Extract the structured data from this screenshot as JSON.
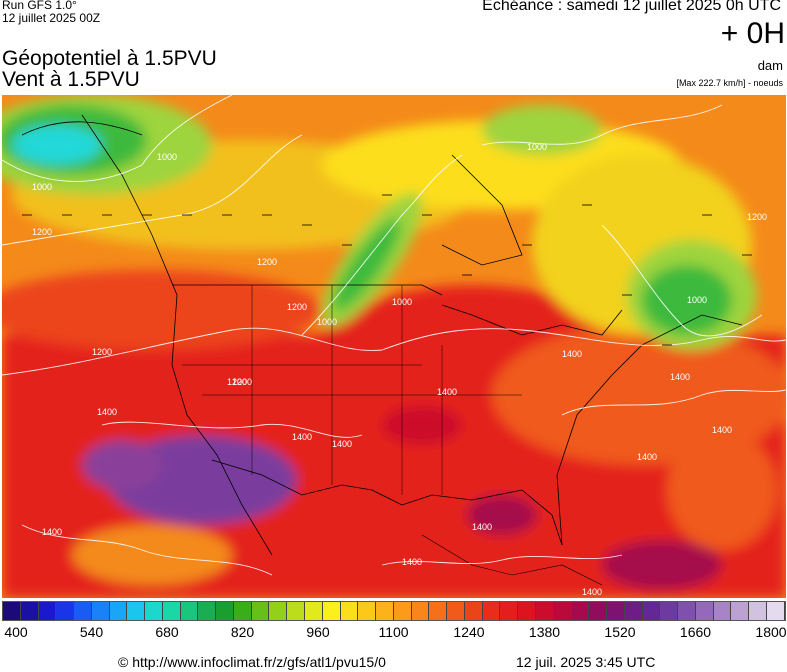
{
  "header": {
    "run": "Run GFS 1.0°",
    "run_date": "12 juillet 2025 00Z",
    "title_line1": "Géopotentiel à 1.5PVU",
    "title_line2": "Vent à 1.5PVU",
    "echeance": "Echéance : samedi 12 juillet 2025 0h UTC",
    "offset": "+ 0H",
    "unit": "dam",
    "max_wind": "[Max 222.7 km/h] - noeuds"
  },
  "map": {
    "contour_labels": [
      "1000",
      "1000",
      "1000",
      "1200",
      "1200",
      "1000",
      "1200",
      "1200",
      "1000",
      "1200",
      "1200",
      "1400",
      "1400",
      "1400",
      "1400",
      "1400",
      "1400",
      "1400",
      "1400",
      "1400",
      "1400",
      "1400",
      "1400",
      "1200",
      "1000"
    ],
    "colors": {
      "purple": "#7a3c9e",
      "red": "#e4201c",
      "orange": "#f48a1a",
      "yellow": "#f2d21a",
      "green": "#3cba3c",
      "cyan": "#22d8d8",
      "light_green": "#9ed43c"
    }
  },
  "legend": {
    "swatch_colors": [
      "#1c0a7a",
      "#1a10a2",
      "#1a1acc",
      "#1a34e8",
      "#1a5cf2",
      "#1a82f6",
      "#1aa6f6",
      "#1ac6ee",
      "#1ad8cc",
      "#1ad8a6",
      "#1ac67e",
      "#1aae52",
      "#1a9e2e",
      "#3aae1a",
      "#66c01a",
      "#92d01a",
      "#bcde1a",
      "#e2ea1a",
      "#fcf01a",
      "#fcde1a",
      "#fcc81a",
      "#fcb21a",
      "#fc9a1a",
      "#f8861a",
      "#f4701a",
      "#f05a1a",
      "#ec441a",
      "#e82e1a",
      "#e41e1a",
      "#dc1420",
      "#cc0c2c",
      "#ba0a3c",
      "#a60a4c",
      "#920c5e",
      "#7e1272",
      "#6e1c86",
      "#642896",
      "#6e3aa2",
      "#8050ae",
      "#9468ba",
      "#a884c6",
      "#bca2d2",
      "#d0c2e0",
      "#e4dcee"
    ],
    "tick_labels": [
      "400",
      "540",
      "680",
      "820",
      "960",
      "1100",
      "1240",
      "1380",
      "1520",
      "1660",
      "1800"
    ]
  },
  "footer": {
    "credit": "© http://www.infoclimat.fr/z/gfs/atl1/pvu15/0",
    "timestamp": "12 juil. 2025  3:45 UTC"
  }
}
